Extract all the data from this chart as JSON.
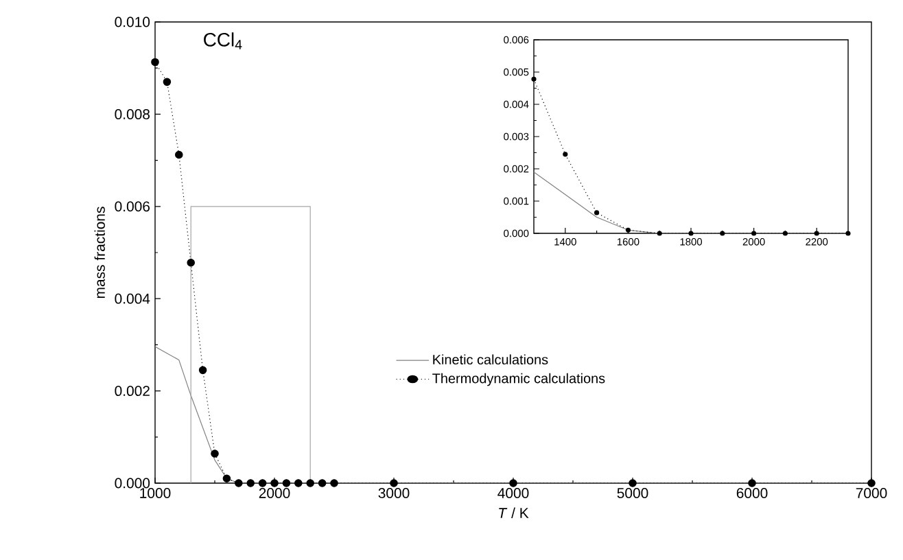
{
  "chart_data": [
    {
      "type": "line",
      "title": "CCl$_{4}$",
      "xlabel": "*T* / K",
      "ylabel": "mass fractions",
      "xlim": [
        1000,
        7000
      ],
      "xticks": [
        1000,
        2000,
        3000,
        4000,
        5000,
        6000,
        7000
      ],
      "ylim": [
        0,
        0.01
      ],
      "yticks": [
        {
          "value": 0,
          "label": "0.000"
        },
        {
          "value": 0.002,
          "label": "0.002"
        },
        {
          "value": 0.004,
          "label": "0.004"
        },
        {
          "value": 0.006,
          "label": "0.006"
        },
        {
          "value": 0.008,
          "label": "0.008"
        },
        {
          "value": 0.01,
          "label": "0.010"
        }
      ],
      "legend": "right",
      "series": [
        {
          "name": "Kinetic calculations",
          "color": "#808080",
          "marker": "none",
          "line_style": "solid",
          "x": [
            1000,
            1200,
            1300,
            1400,
            1500,
            1600,
            1700,
            1800,
            2000,
            2500,
            3000,
            4000,
            5000,
            6000,
            7000
          ],
          "values": [
            0.00296,
            0.00267,
            0.0019,
            0.0012,
            0.0005,
            0.0001,
            0,
            0,
            0,
            0,
            0,
            0,
            0,
            0,
            0
          ]
        },
        {
          "name": "Thermodynamic calculations",
          "color": "#000000",
          "marker": "circle",
          "line_style": "dotted",
          "x": [
            1000,
            1100,
            1200,
            1300,
            1400,
            1500,
            1600,
            1700,
            1800,
            1900,
            2000,
            2100,
            2200,
            2300,
            2400,
            2500,
            3000,
            4000,
            5000,
            6000,
            7000
          ],
          "values": [
            0.00913,
            0.0087,
            0.00712,
            0.00478,
            0.00245,
            0.00064,
            0.0001,
            0,
            0,
            0,
            0,
            0,
            0,
            0,
            0,
            0,
            0,
            0,
            0,
            0,
            0
          ]
        },
        {
          "color": "#a6a6a6",
          "marker": "none",
          "line_style": "solid",
          "x": [
            1300,
            1300,
            2300,
            2300
          ],
          "values": [
            0,
            0.006,
            0.006,
            0
          ]
        }
      ]
    },
    {
      "type": "line",
      "xlim": [
        1300,
        2300
      ],
      "xticks": [
        1400,
        1600,
        1800,
        2000,
        2200
      ],
      "ylim": [
        0,
        0.006
      ],
      "yticks": [
        {
          "value": 0,
          "label": "0.000"
        },
        {
          "value": 0.001,
          "label": "0.001"
        },
        {
          "value": 0.002,
          "label": "0.002"
        },
        {
          "value": 0.003,
          "label": "0.003"
        },
        {
          "value": 0.004,
          "label": "0.004"
        },
        {
          "value": 0.005,
          "label": "0.005"
        },
        {
          "value": 0.006,
          "label": "0.006"
        }
      ],
      "series": [
        {
          "color": "#808080",
          "marker": "none",
          "line_style": "solid",
          "x": [
            1300,
            1400,
            1500,
            1600,
            1700,
            1800,
            2000,
            2300
          ],
          "values": [
            0.0019,
            0.0012,
            0.0005,
            0.0001,
            0,
            0,
            0,
            0
          ]
        },
        {
          "color": "#000000",
          "marker": "circle",
          "line_style": "dotted",
          "x": [
            1300,
            1400,
            1500,
            1600,
            1700,
            1800,
            1900,
            2000,
            2100,
            2200,
            2300
          ],
          "values": [
            0.00478,
            0.00245,
            0.00064,
            0.0001,
            0,
            0,
            0,
            0,
            0,
            0,
            0
          ]
        }
      ]
    }
  ]
}
